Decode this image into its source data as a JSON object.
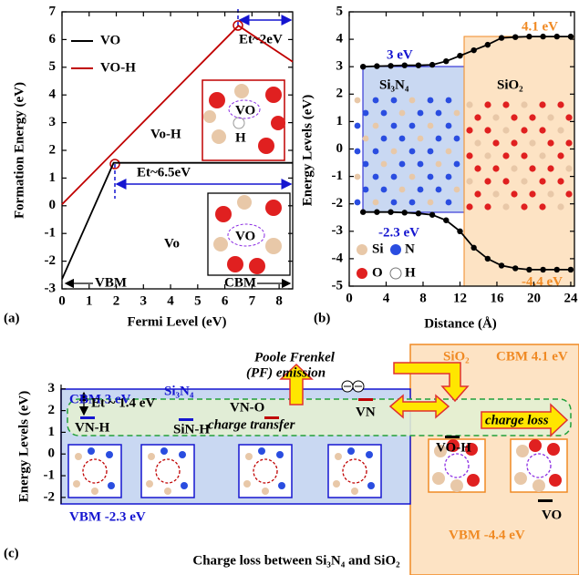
{
  "chart_data": [
    {
      "type": "line",
      "panel_label": "(a)",
      "xlabel": "Fermi Level (eV)",
      "ylabel": "Formation Energy (eV)",
      "xlim": [
        0,
        8.5
      ],
      "ylim": [
        -3,
        7
      ],
      "xticks": [
        0,
        1,
        2,
        3,
        4,
        5,
        6,
        7,
        8
      ],
      "yticks": [
        -3,
        -2,
        -1,
        0,
        1,
        2,
        3,
        4,
        5,
        6,
        7
      ],
      "series": [
        {
          "name": "VO",
          "color": "#000000",
          "x": [
            0,
            1.9,
            8.5
          ],
          "values": [
            -2.65,
            1.55,
            1.55
          ]
        },
        {
          "name": "VO-H",
          "color": "#c00000",
          "x": [
            0,
            6.5,
            8.5
          ],
          "values": [
            0.05,
            6.5,
            5.2
          ]
        }
      ],
      "annotations": [
        "Et~2eV",
        "Et~6.5eV",
        "Vo-H",
        "Vo",
        "VBM",
        "CBM",
        "VO",
        "H",
        "VO"
      ]
    },
    {
      "type": "line",
      "panel_label": "(b)",
      "xlabel": "Distance (Å)",
      "ylabel": "Energy Levels (eV)",
      "xlim": [
        0,
        24.4
      ],
      "ylim": [
        -5,
        5
      ],
      "xticks": [
        0,
        4,
        8,
        12,
        16,
        20,
        24
      ],
      "yticks": [
        -5,
        -4,
        -3,
        -2,
        -1,
        0,
        1,
        2,
        3,
        4,
        5
      ],
      "x": [
        1.5,
        3,
        4.5,
        6,
        7.5,
        9,
        10.5,
        12,
        13.5,
        15,
        16.5,
        18,
        19.5,
        21,
        22.5,
        24
      ],
      "series": [
        {
          "color": "#000000",
          "values": [
            3.0,
            3.02,
            3.03,
            3.05,
            3.05,
            3.07,
            3.2,
            3.4,
            3.6,
            3.8,
            4.05,
            4.08,
            4.1,
            4.1,
            4.1,
            4.1
          ]
        },
        {
          "color": "#000000",
          "values": [
            -2.3,
            -2.3,
            -2.3,
            -2.32,
            -2.35,
            -2.4,
            -2.6,
            -3.0,
            -3.6,
            -4.0,
            -4.25,
            -4.35,
            -4.4,
            -4.4,
            -4.4,
            -4.4
          ]
        }
      ],
      "legend": [
        "Si",
        "N",
        "O",
        "H"
      ],
      "annotations": [
        "3 eV",
        "4.1 eV",
        "-2.3 eV",
        "-4.4 eV",
        "Si₃N₄",
        "SiO₂"
      ]
    },
    {
      "type": "band-diagram",
      "panel_label": "(c)",
      "title": "Charge loss between Si₃N₄ and SiO₂",
      "ylabel": "Energy Levels (eV)",
      "ylim": [
        -2.3,
        3.2
      ],
      "yticks": [
        -2,
        -1,
        0,
        1,
        2,
        3
      ],
      "annotations": [
        "CBM 3 eV",
        "Si₃N₄",
        "VBM -2.3 eV",
        "Et ~ 1.4 eV",
        "VN-H",
        "SiN-H",
        "VN-O",
        "charge transfer",
        "Poole Frenkel",
        "(PF) emission",
        "VN",
        "SiO₂",
        "CBM 4.1 eV",
        "VO-H",
        "charge loss",
        "VBM -4.4 eV",
        "VO"
      ]
    }
  ]
}
